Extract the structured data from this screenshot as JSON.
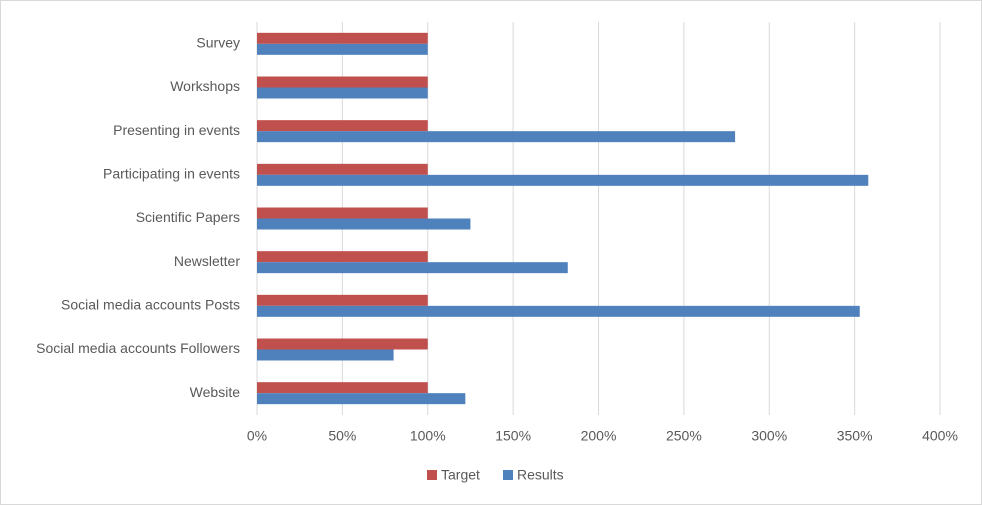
{
  "chart_data": {
    "type": "hbar",
    "categories": [
      "Survey",
      "Workshops",
      "Presenting in events",
      "Participating in events",
      "Scientific Papers",
      "Newsletter",
      "Social media accounts Posts",
      "Social media accounts Followers",
      "Website"
    ],
    "series": [
      {
        "name": "Target",
        "color": "#c0504d",
        "values": [
          100,
          100,
          100,
          100,
          100,
          100,
          100,
          100,
          100
        ]
      },
      {
        "name": "Results",
        "color": "#4f81bd",
        "values": [
          100,
          100,
          280,
          358,
          125,
          182,
          353,
          80,
          122
        ]
      }
    ],
    "xlim": [
      0,
      400
    ],
    "xticks": [
      {
        "value": 0,
        "label": "0%"
      },
      {
        "value": 50,
        "label": "50%"
      },
      {
        "value": 100,
        "label": "100%"
      },
      {
        "value": 150,
        "label": "150%"
      },
      {
        "value": 200,
        "label": "200%"
      },
      {
        "value": 250,
        "label": "250%"
      },
      {
        "value": 300,
        "label": "300%"
      },
      {
        "value": 350,
        "label": "350%"
      },
      {
        "value": 400,
        "label": "400%"
      }
    ],
    "grid": true,
    "legend": "bottom"
  }
}
